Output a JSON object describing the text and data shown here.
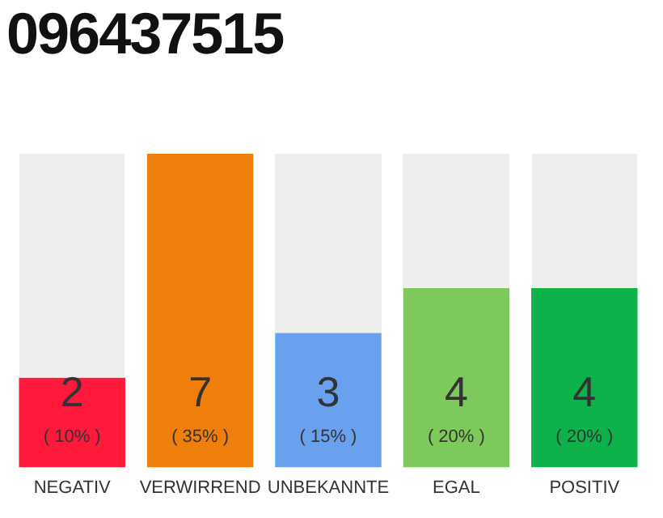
{
  "chart_data": {
    "type": "bar",
    "title": "096437515",
    "categories": [
      "NEGATIV",
      "VERWIRREND",
      "UNBEKANNTE",
      "EGAL",
      "POSITIV"
    ],
    "values": [
      2,
      7,
      3,
      4,
      4
    ],
    "colors": [
      "#ff1a3c",
      "#f07e0b",
      "#6aa1ee",
      "#7ec95c",
      "#0db34a"
    ],
    "value_labels": [
      "2\n( 10% )",
      "7\n( 35% )",
      "3\n( 15% )",
      "4\n( 20% )",
      "4\n( 20% )"
    ],
    "grid": false,
    "legend": false,
    "tick_labels": "x"
  }
}
